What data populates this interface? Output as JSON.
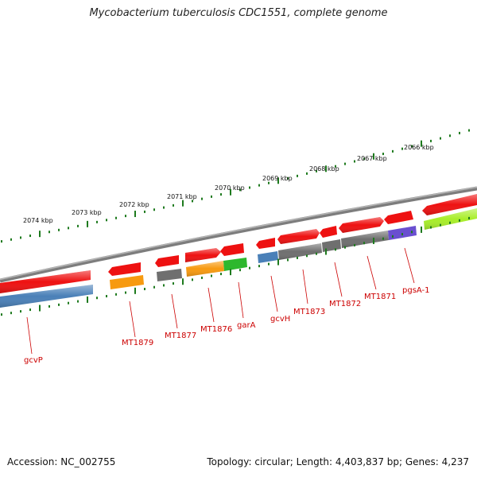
{
  "title": "Mycobacterium tuberculosis CDC1551, complete genome",
  "footer": {
    "accession": "Accession: NC_002755",
    "summary": "Topology: circular; Length: 4,403,837 bp; Genes: 4,237"
  },
  "colors": {
    "backbone": "#8a8a8a",
    "ruler": "#1e7a1e",
    "label": "#cc0000",
    "forward_gene": "#ee1111",
    "reverse_gene_gray": "#6f6f6f",
    "reverse_gene_blue": "#4a80b8",
    "reverse_gene_orange": "#f79a10",
    "reverse_gene_green": "#2db82d",
    "reverse_gene_purple": "#6a4fd0",
    "reverse_gene_lime": "#a8ee2a"
  },
  "scale": {
    "unit": "kbp",
    "tick_labels": [
      "2074 kbp",
      "2073 kbp",
      "2072 kbp",
      "2071 kbp",
      "2070 kbp",
      "2069 kbp",
      "2068 kbp",
      "2067 kbp",
      "2066 kbp"
    ]
  },
  "gene_labels": [
    "gcvP",
    "MT1879",
    "MT1877",
    "MT1876",
    "garA",
    "gcvH",
    "MT1873",
    "MT1872",
    "MT1871",
    "pgsA-1"
  ]
}
